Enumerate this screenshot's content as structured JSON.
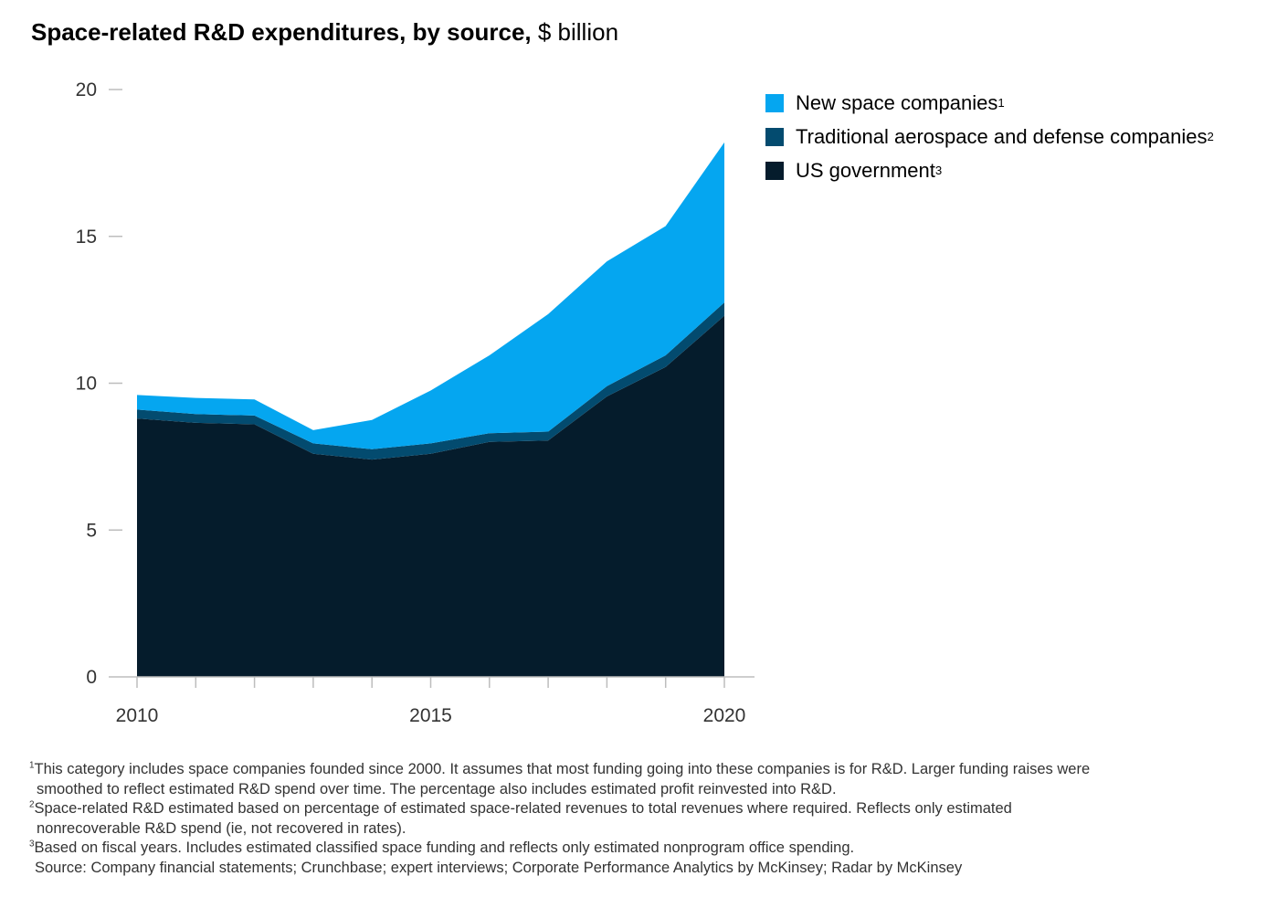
{
  "title": {
    "bold": "Space-related R&D expenditures, by source,",
    "unit": "$ billion"
  },
  "legend": [
    {
      "label": "New space companies",
      "sup": "1",
      "color": "#05A6F0"
    },
    {
      "label": "Traditional aerospace and defense companies",
      "sup": "2",
      "color": "#034B6F"
    },
    {
      "label": "US government",
      "sup": "3",
      "color": "#051C2C"
    }
  ],
  "chart_data": {
    "type": "area",
    "stacked": true,
    "title": "Space-related R&D expenditures, by source, $ billion",
    "x": [
      2010,
      2011,
      2012,
      2013,
      2014,
      2015,
      2016,
      2017,
      2018,
      2019,
      2020
    ],
    "x_tick_labels": [
      "2010",
      "2015",
      "2020"
    ],
    "y_tick_labels": [
      "0",
      "5",
      "10",
      "15",
      "20"
    ],
    "ylim": [
      0,
      20
    ],
    "legend_position": "top-right",
    "grid": false,
    "series": [
      {
        "name": "US government",
        "color": "#051C2C",
        "values": [
          8.8,
          8.65,
          8.6,
          7.6,
          7.4,
          7.6,
          8.0,
          8.05,
          9.55,
          10.55,
          12.3
        ]
      },
      {
        "name": "Traditional aerospace and defense companies",
        "color": "#034B6F",
        "values": [
          0.3,
          0.3,
          0.3,
          0.35,
          0.35,
          0.35,
          0.3,
          0.3,
          0.35,
          0.4,
          0.45
        ]
      },
      {
        "name": "New space companies",
        "color": "#05A6F0",
        "values": [
          0.5,
          0.55,
          0.55,
          0.45,
          1.0,
          1.8,
          2.65,
          4.0,
          4.25,
          4.4,
          5.45
        ]
      }
    ]
  },
  "footnotes": [
    {
      "sup": "1",
      "lines": [
        "This category includes space companies founded since 2000. It assumes that most funding going into these companies is for R&D. Larger funding raises were",
        "smoothed to reflect estimated R&D spend over time. The percentage also includes estimated profit reinvested into R&D."
      ]
    },
    {
      "sup": "2",
      "lines": [
        "Space-related R&D estimated based on percentage of estimated space-related revenues to total revenues where required. Reflects only estimated",
        "nonrecoverable R&D spend (ie, not recovered in rates)."
      ]
    },
    {
      "sup": "3",
      "lines": [
        "Based on fiscal years. Includes estimated classified space funding and reflects only estimated nonprogram office spending."
      ]
    }
  ],
  "source": "Source: Company financial statements; Crunchbase; expert interviews; Corporate Performance Analytics by McKinsey; Radar by McKinsey"
}
